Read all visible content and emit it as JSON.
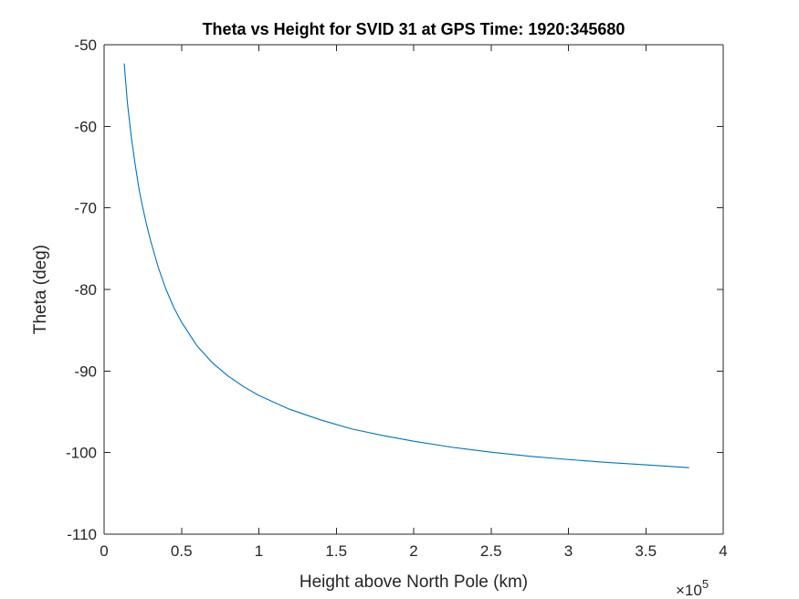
{
  "chart_data": {
    "type": "line",
    "title": "Theta vs Height for SVID 31 at GPS Time: 1920:345680",
    "xlabel": "Height above North Pole (km)",
    "ylabel": "Theta (deg)",
    "x_exponent_label": "×10",
    "x_exponent_power": "5",
    "xlim": [
      0,
      400000
    ],
    "ylim": [
      -110,
      -50
    ],
    "xticks": [
      0,
      50000,
      100000,
      150000,
      200000,
      250000,
      300000,
      350000,
      400000
    ],
    "xtick_labels": [
      "0",
      "0.5",
      "1",
      "1.5",
      "2",
      "2.5",
      "3",
      "3.5",
      "4"
    ],
    "yticks": [
      -110,
      -100,
      -90,
      -80,
      -70,
      -60,
      -50
    ],
    "ytick_labels": [
      "-110",
      "-100",
      "-90",
      "-80",
      "-70",
      "-60",
      "-50"
    ],
    "grid": false,
    "box": true,
    "series": [
      {
        "color": "#0072BD",
        "x": [
          13000,
          15000,
          17500,
          20000,
          22500,
          25000,
          27500,
          30000,
          35000,
          40000,
          45000,
          50000,
          60000,
          70000,
          80000,
          90000,
          100000,
          120000,
          140000,
          160000,
          180000,
          200000,
          225000,
          250000,
          275000,
          300000,
          325000,
          350000,
          378000
        ],
        "y": [
          -52.3,
          -57.0,
          -61.2,
          -64.6,
          -67.6,
          -70.0,
          -72.1,
          -74.0,
          -77.3,
          -80.0,
          -82.2,
          -84.0,
          -86.9,
          -89.0,
          -90.6,
          -91.9,
          -93.0,
          -94.7,
          -96.0,
          -97.1,
          -97.9,
          -98.6,
          -99.35,
          -99.95,
          -100.45,
          -100.85,
          -101.2,
          -101.5,
          -101.85
        ]
      }
    ]
  }
}
